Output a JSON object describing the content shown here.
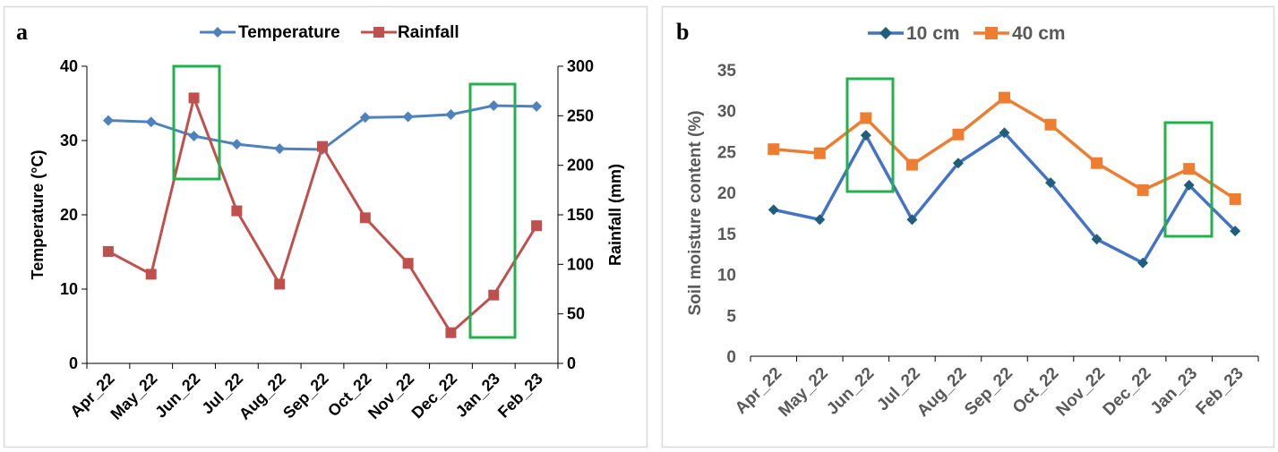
{
  "chart_data": [
    {
      "panel_label": "a",
      "type": "line",
      "categories": [
        "Apr_22",
        "May_22",
        "Jun_22",
        "Jul_22",
        "Aug_22",
        "Sep_22",
        "Oct_22",
        "Nov_22",
        "Dec_22",
        "Jan_23",
        "Feb_23"
      ],
      "series": [
        {
          "name": "Temperature",
          "axis": "left",
          "color": "#4F81BD",
          "marker": "diamond",
          "values": [
            32.7,
            32.5,
            30.6,
            29.5,
            28.9,
            28.8,
            33.1,
            33.2,
            33.5,
            34.7,
            34.6
          ]
        },
        {
          "name": "Rainfall",
          "axis": "right",
          "color": "#C0504D",
          "marker": "square",
          "values": [
            113,
            90,
            268,
            154,
            80,
            219,
            147,
            101,
            31,
            69,
            139
          ]
        }
      ],
      "ylabel": "Temperature (°C)",
      "y2label": "Rainfall (mm)",
      "ylim": [
        0,
        40
      ],
      "yticks": [
        "0",
        "10",
        "20",
        "30",
        "40"
      ],
      "y2lim": [
        0,
        300
      ],
      "y2ticks": [
        "0",
        "50",
        "100",
        "150",
        "200",
        "250",
        "300"
      ],
      "grid": false,
      "legend_position": "top",
      "highlights": [
        {
          "from": "Jun_22",
          "to": "Jun_22"
        },
        {
          "from": "Jan_23",
          "to": "Jan_23"
        }
      ],
      "highlight_color": "#22B14C"
    },
    {
      "panel_label": "b",
      "type": "line",
      "categories": [
        "Apr_22",
        "May_22",
        "Jun_22",
        "Jul_22",
        "Aug_22",
        "Sep_22",
        "Oct_22",
        "Nov_22",
        "Dec_22",
        "Jan_23",
        "Feb_23"
      ],
      "series": [
        {
          "name": "10 cm",
          "color": "#4472C4",
          "marker_color": "#1F5F7A",
          "marker": "diamond",
          "values": [
            17.9,
            16.7,
            27.0,
            16.7,
            23.6,
            27.3,
            21.2,
            14.3,
            11.4,
            20.9,
            15.3
          ]
        },
        {
          "name": "40 cm",
          "color": "#ED7D31",
          "marker_color": "#ED7D31",
          "marker": "square",
          "values": [
            25.3,
            24.8,
            29.1,
            23.4,
            27.1,
            31.6,
            28.3,
            23.6,
            20.3,
            22.9,
            19.2
          ]
        }
      ],
      "ylabel": "Soil moisture content (%)",
      "ylim": [
        0,
        35
      ],
      "yticks": [
        "0",
        "5",
        "10",
        "15",
        "20",
        "25",
        "30",
        "35"
      ],
      "grid": false,
      "legend_position": "top",
      "highlights": [
        {
          "from": "Jun_22",
          "to": "Jun_22"
        },
        {
          "from": "Jan_23",
          "to": "Jan_23"
        }
      ],
      "highlight_color": "#22B14C"
    }
  ]
}
